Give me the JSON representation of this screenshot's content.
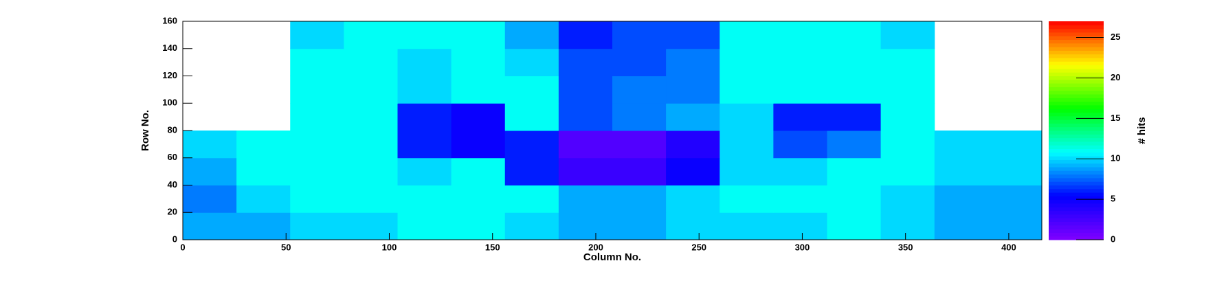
{
  "chart_data": {
    "type": "heatmap",
    "x_label": "Column No.",
    "y_label": "Row No.",
    "z_label": "# hits",
    "xbins": [
      0,
      26,
      52,
      78,
      104,
      130,
      156,
      182,
      208,
      234,
      260,
      286,
      312,
      338,
      364,
      390,
      416
    ],
    "ybins": [
      0,
      20,
      40,
      60,
      80,
      100,
      120,
      140,
      160
    ],
    "z": [
      [
        9,
        9,
        10,
        10,
        11,
        11,
        10,
        9,
        9,
        10,
        10,
        10,
        11,
        10,
        9,
        9
      ],
      [
        8,
        10,
        11,
        11,
        11,
        11,
        11,
        9,
        9,
        10,
        11,
        11,
        11,
        10,
        9,
        9
      ],
      [
        9,
        11,
        11,
        11,
        10,
        11,
        6,
        3,
        3,
        5,
        10,
        10,
        11,
        11,
        10,
        10
      ],
      [
        10,
        11,
        11,
        11,
        6,
        5,
        6,
        2,
        2,
        4,
        10,
        7,
        8,
        11,
        10,
        10
      ],
      [
        null,
        null,
        11,
        11,
        6,
        5,
        11,
        7,
        8,
        9,
        10,
        6,
        6,
        11,
        null,
        null
      ],
      [
        null,
        null,
        11,
        11,
        10,
        11,
        11,
        7,
        8,
        8,
        11,
        11,
        11,
        11,
        null,
        null
      ],
      [
        null,
        null,
        11,
        11,
        10,
        11,
        10,
        7,
        7,
        8,
        11,
        11,
        11,
        11,
        null,
        null
      ],
      [
        null,
        null,
        10,
        11,
        11,
        11,
        9,
        6,
        7,
        7,
        11,
        11,
        11,
        10,
        null,
        null
      ]
    ],
    "xlim": [
      0,
      416
    ],
    "ylim": [
      0,
      160
    ],
    "zlim": [
      0,
      27
    ],
    "xticks": [
      0,
      50,
      100,
      150,
      200,
      250,
      300,
      350,
      400
    ],
    "yticks": [
      0,
      20,
      40,
      60,
      80,
      100,
      120,
      140,
      160
    ],
    "zticks": [
      0,
      5,
      10,
      15,
      20,
      25
    ],
    "colormap": [
      "#8000ff",
      "#0000ff",
      "#00ffff",
      "#00ff00",
      "#ffff00",
      "#ff0000"
    ]
  }
}
